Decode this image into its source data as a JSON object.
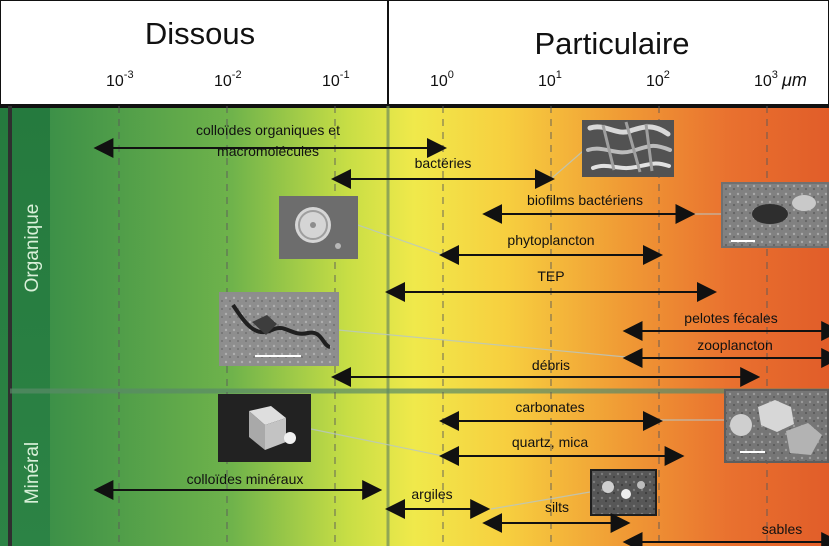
{
  "header": {
    "dissolved": "Dissous",
    "particulate": "Particulaire",
    "unit": "μm"
  },
  "scale": {
    "ticks": [
      {
        "base": "10",
        "exp": "-3",
        "value": -3
      },
      {
        "base": "10",
        "exp": "-2",
        "value": -2
      },
      {
        "base": "10",
        "exp": "-1",
        "value": -1
      },
      {
        "base": "10",
        "exp": "0",
        "value": 0
      },
      {
        "base": "10",
        "exp": "1",
        "value": 1
      },
      {
        "base": "10",
        "exp": "2",
        "value": 2
      },
      {
        "base": "10",
        "exp": "3",
        "value": 3
      }
    ]
  },
  "rows": {
    "organic": "Organique",
    "mineral": "Minéral"
  },
  "ranges": [
    {
      "key": "colloides-organiques",
      "label_lines": [
        "colloïdes organiques et",
        "macromolécules"
      ],
      "from": -3.2,
      "to": 0
    },
    {
      "key": "bacteries",
      "label_lines": [
        "bactéries"
      ],
      "from": -1,
      "to": 1
    },
    {
      "key": "biofilms",
      "label_lines": [
        "biofilms bactériens"
      ],
      "from": 0.4,
      "to": 2.3
    },
    {
      "key": "phytoplancton",
      "label_lines": [
        "phytoplancton"
      ],
      "from": 0,
      "to": 2
    },
    {
      "key": "tep",
      "label_lines": [
        "TEP"
      ],
      "from": -0.5,
      "to": 2.5
    },
    {
      "key": "pelotes",
      "label_lines": [
        "pelotes fécales"
      ],
      "from": 1.7,
      "to": 3.65
    },
    {
      "key": "zooplancton",
      "label_lines": [
        "zooplancton"
      ],
      "from": 1.7,
      "to": 3.65
    },
    {
      "key": "debris",
      "label_lines": [
        "débris"
      ],
      "from": -1,
      "to": 2.9
    },
    {
      "key": "carbonates",
      "label_lines": [
        "carbonates"
      ],
      "from": 0,
      "to": 2
    },
    {
      "key": "quartz",
      "label_lines": [
        "quartz, mica"
      ],
      "from": 0,
      "to": 2.2
    },
    {
      "key": "colloides-mineraux",
      "label_lines": [
        "colloïdes minéraux"
      ],
      "from": -3.2,
      "to": -0.6
    },
    {
      "key": "argiles",
      "label_lines": [
        "argiles"
      ],
      "from": -0.5,
      "to": 0.4
    },
    {
      "key": "silts",
      "label_lines": [
        "silts"
      ],
      "from": 0.4,
      "to": 1.7
    },
    {
      "key": "sables",
      "label_lines": [
        "sables"
      ],
      "from": 1.7,
      "to": 3.65
    }
  ],
  "photos": [
    {
      "key": "bacteries-photo",
      "icon": "bacteria-micrograph"
    },
    {
      "key": "biofilm-photo",
      "icon": "biofilm-micrograph"
    },
    {
      "key": "diatom-photo",
      "icon": "diatom-micrograph"
    },
    {
      "key": "debris-photo",
      "icon": "debris-micrograph"
    },
    {
      "key": "crystal-photo",
      "icon": "crystal-micrograph"
    },
    {
      "key": "carbonate-photo",
      "icon": "carbonate-micrograph"
    },
    {
      "key": "silt-photo",
      "icon": "silt-micrograph"
    }
  ],
  "colors": {
    "green": "#2f8f48",
    "yellow": "#f2e84a",
    "orange": "#ea6d2d"
  }
}
